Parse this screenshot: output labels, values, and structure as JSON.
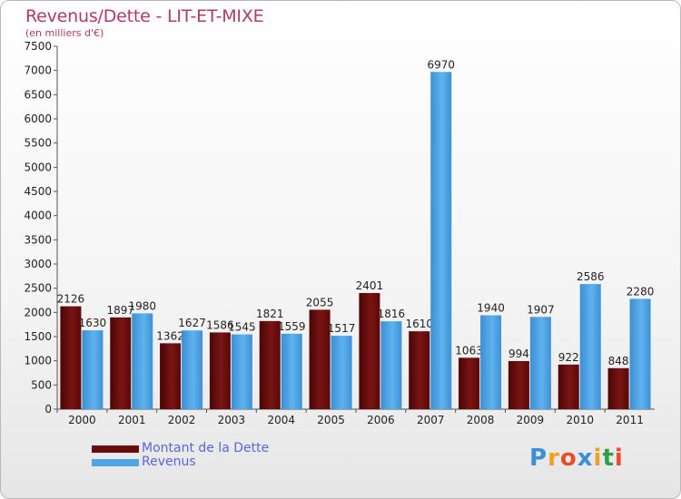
{
  "title": "Revenus/Dette - LIT-ET-MIXE",
  "subtitle": "(en milliers d'€)",
  "logo_letters": [
    "P",
    "r",
    "o",
    "x",
    "i",
    "t",
    "i"
  ],
  "logo_colors": [
    "#3b8ed8",
    "#f0a020",
    "#e84c2a",
    "#3b8ed8",
    "#f0a020",
    "#2e9e4a",
    "#e84c2a"
  ],
  "colors": {
    "dette": "#6b0d0d",
    "revenus": "#4fa6e6",
    "title": "#b03a66",
    "legend_text": "#5a66d9"
  },
  "chart_data": {
    "type": "bar",
    "categories": [
      "2000",
      "2001",
      "2002",
      "2003",
      "2004",
      "2005",
      "2006",
      "2007",
      "2008",
      "2009",
      "2010",
      "2011"
    ],
    "series": [
      {
        "name": "Montant de la Dette",
        "values": [
          2126,
          1897,
          1362,
          1586,
          1821,
          2055,
          2401,
          1610,
          1063,
          994,
          922,
          848
        ]
      },
      {
        "name": "Revenus",
        "values": [
          1630,
          1980,
          1627,
          1545,
          1559,
          1517,
          1816,
          6970,
          1940,
          1907,
          2586,
          2280
        ]
      }
    ],
    "ylim": [
      0,
      7500
    ],
    "yticks": [
      0,
      500,
      1000,
      1500,
      2000,
      2500,
      3000,
      3500,
      4000,
      4500,
      5000,
      5500,
      6000,
      6500,
      7000,
      7500
    ],
    "grid": false,
    "legend_position": "bottom-left"
  }
}
